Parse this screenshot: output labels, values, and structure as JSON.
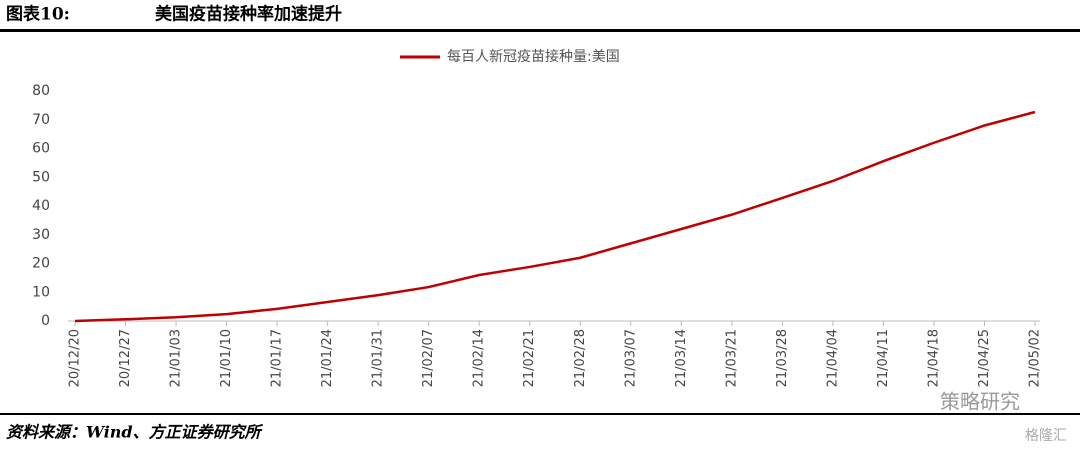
{
  "header": {
    "label": "图表10:",
    "title": "美国疫苗接种率加速提升"
  },
  "chart_data": {
    "type": "line",
    "categories": [
      "20/12/20",
      "20/12/27",
      "21/01/03",
      "21/01/10",
      "21/01/17",
      "21/01/24",
      "21/01/31",
      "21/02/07",
      "21/02/14",
      "21/02/21",
      "21/02/28",
      "21/03/07",
      "21/03/14",
      "21/03/21",
      "21/03/28",
      "21/04/04",
      "21/04/11",
      "21/04/18",
      "21/04/25",
      "21/05/02"
    ],
    "series": [
      {
        "name": "每百人新冠疫苗接种量:美国",
        "color": "#c00000",
        "values": [
          0,
          0.6,
          1.3,
          2.4,
          4.2,
          6.6,
          9,
          11.8,
          16,
          18.8,
          22,
          27,
          32,
          37,
          42.8,
          48.7,
          55.6,
          62,
          68,
          72.7
        ]
      }
    ],
    "ylim": [
      0,
      80
    ],
    "yticks": [
      0,
      10,
      20,
      30,
      40,
      50,
      60,
      70,
      80
    ],
    "grid": false,
    "legend": "top"
  },
  "footer": {
    "source": "资料来源：Wind、方正证券研究所"
  },
  "watermark": {
    "wechat": "策略研究",
    "site": "格隆汇"
  }
}
